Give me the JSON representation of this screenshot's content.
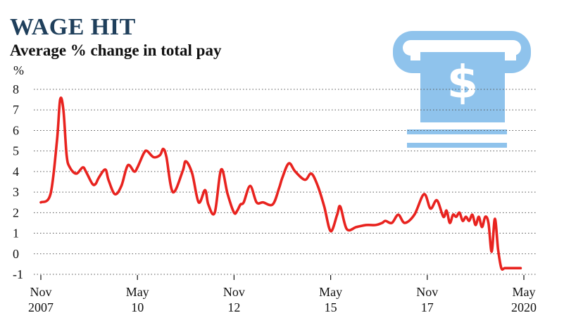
{
  "chart_data": {
    "type": "line",
    "title": "WAGE HIT",
    "subtitle": "Average % change in total pay",
    "ylabel": "%",
    "ylim": [
      -1,
      8
    ],
    "yticks": [
      -1,
      0,
      1,
      2,
      3,
      4,
      5,
      6,
      7,
      8
    ],
    "grid": true,
    "x_ticks": [
      {
        "line1": "Nov",
        "line2": "2007",
        "x": 2007.833
      },
      {
        "line1": "May",
        "line2": "10",
        "x": 2010.333
      },
      {
        "line1": "Nov",
        "line2": "12",
        "x": 2012.833
      },
      {
        "line1": "May",
        "line2": "15",
        "x": 2015.333
      },
      {
        "line1": "Nov",
        "line2": "17",
        "x": 2017.833
      },
      {
        "line1": "May",
        "line2": "2020",
        "x": 2020.333
      }
    ],
    "series": [
      {
        "color": "#e8231f",
        "x": [
          2007.833,
          2008.083,
          2008.25,
          2008.333,
          2008.417,
          2008.5,
          2008.583,
          2008.75,
          2008.917,
          2009.0,
          2009.167,
          2009.25,
          2009.333,
          2009.5,
          2009.583,
          2009.75,
          2009.917,
          2010.083,
          2010.25,
          2010.333,
          2010.5,
          2010.583,
          2010.75,
          2010.917,
          2011.0,
          2011.083,
          2011.25,
          2011.5,
          2011.583,
          2011.75,
          2011.917,
          2012.083,
          2012.167,
          2012.333,
          2012.5,
          2012.667,
          2012.833,
          2012.917,
          2013.0,
          2013.083,
          2013.25,
          2013.417,
          2013.583,
          2013.833,
          2014.0,
          2014.083,
          2014.25,
          2014.417,
          2014.667,
          2014.833,
          2015.0,
          2015.167,
          2015.333,
          2015.5,
          2015.583,
          2015.75,
          2016.0,
          2016.25,
          2016.5,
          2016.667,
          2016.75,
          2016.917,
          2017.083,
          2017.25,
          2017.5,
          2017.75,
          2017.917,
          2018.083,
          2018.25,
          2018.333,
          2018.417,
          2018.5,
          2018.583,
          2018.667,
          2018.75,
          2018.833,
          2018.917,
          2019.0,
          2019.083,
          2019.167,
          2019.25,
          2019.333,
          2019.417,
          2019.5,
          2019.583,
          2019.667,
          2019.75,
          2019.833,
          2019.917,
          2020.0,
          2020.083,
          2020.167,
          2020.25
        ],
        "y": [
          2.5,
          2.9,
          5.5,
          7.5,
          7.0,
          4.8,
          4.2,
          3.9,
          4.2,
          4.0,
          3.4,
          3.4,
          3.7,
          4.1,
          3.6,
          2.9,
          3.3,
          4.3,
          4.0,
          4.2,
          4.9,
          5.0,
          4.7,
          4.8,
          5.1,
          4.7,
          3.0,
          4.0,
          4.5,
          3.9,
          2.5,
          3.1,
          2.4,
          2.0,
          4.1,
          2.9,
          2.0,
          2.1,
          2.4,
          2.5,
          3.3,
          2.5,
          2.5,
          2.4,
          3.2,
          3.7,
          4.4,
          4.0,
          3.6,
          3.9,
          3.3,
          2.3,
          1.1,
          1.9,
          2.3,
          1.2,
          1.3,
          1.4,
          1.4,
          1.5,
          1.6,
          1.5,
          1.9,
          1.5,
          1.9,
          2.9,
          2.2,
          2.6,
          1.8,
          2.1,
          1.5,
          1.9,
          1.8,
          2.0,
          1.6,
          1.8,
          1.6,
          1.9,
          1.4,
          1.8,
          1.3,
          1.8,
          1.5,
          0.1,
          1.7,
          0.2,
          -0.7,
          -0.7,
          -0.7,
          -0.7,
          -0.7,
          -0.7,
          -0.7
        ]
      }
    ]
  },
  "illustration": {
    "name": "atm-cash-icon",
    "color": "#8fc3ec"
  }
}
